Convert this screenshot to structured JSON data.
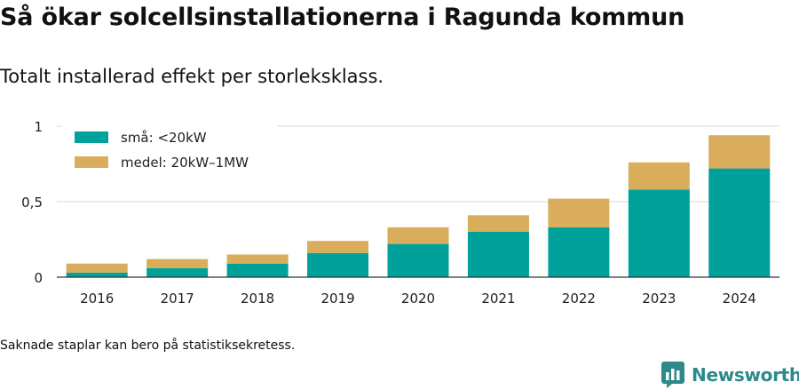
{
  "title": "Så ökar solcellsinstallationerna i Ragunda kommun",
  "subtitle": "Totalt installerad effekt per storleksklass.",
  "footnote": "Saknade staplar kan bero på statistiksekretess.",
  "brand": {
    "name": "Newsworthy",
    "icon": "newsworthy-logo-icon",
    "color": "#2e8a8a"
  },
  "chart_data": {
    "type": "bar",
    "stacked": true,
    "categories": [
      "2016",
      "2017",
      "2018",
      "2019",
      "2020",
      "2021",
      "2022",
      "2023",
      "2024"
    ],
    "series": [
      {
        "name": "små: <20kW",
        "color": "#00a19a",
        "values": [
          0.03,
          0.06,
          0.09,
          0.16,
          0.22,
          0.3,
          0.33,
          0.58,
          0.72
        ]
      },
      {
        "name": "medel: 20kW–1MW",
        "color": "#d9ad5b",
        "values": [
          0.06,
          0.06,
          0.06,
          0.08,
          0.11,
          0.11,
          0.19,
          0.18,
          0.22
        ]
      }
    ],
    "ylim": [
      0,
      1
    ],
    "yticks": [
      0,
      0.5,
      1
    ],
    "ytick_labels": [
      "0",
      "0,5",
      "1"
    ],
    "grid": true,
    "legend_position": "top-left",
    "xlabel": "",
    "ylabel": ""
  }
}
